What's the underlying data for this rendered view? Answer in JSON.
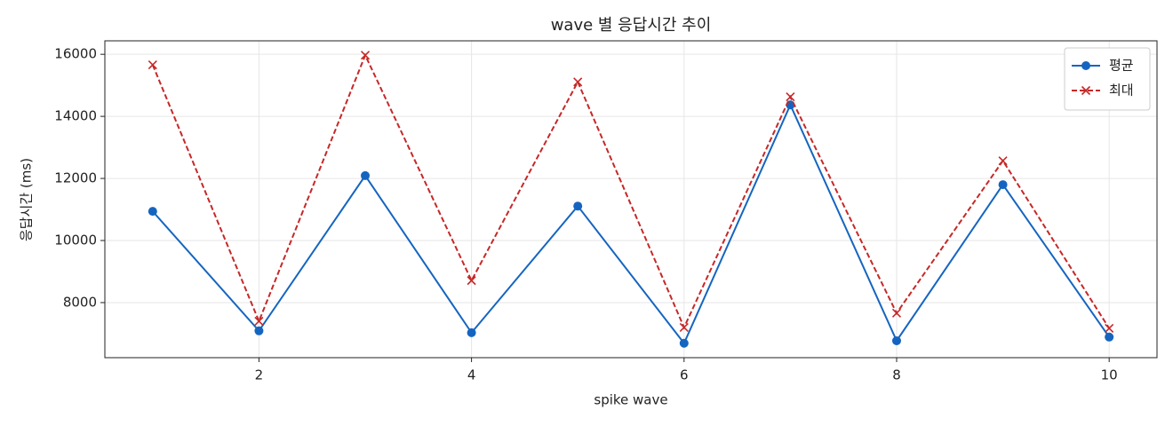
{
  "chart_data": {
    "type": "line",
    "title": "wave 별 응답시간 추이",
    "x_label": "spike wave",
    "y_label": "응답시간 (ms)",
    "x": [
      1,
      2,
      3,
      4,
      5,
      6,
      7,
      8,
      9,
      10
    ],
    "series": [
      {
        "name": "평균",
        "color": "#1565c0",
        "marker": "o",
        "dash": false,
        "values": [
          10940,
          7090,
          12090,
          7030,
          11110,
          6690,
          14370,
          6770,
          11800,
          6890
        ]
      },
      {
        "name": "최대",
        "color": "#c62828",
        "marker": "x",
        "dash": true,
        "values": [
          15660,
          7400,
          15970,
          8710,
          15110,
          7200,
          14630,
          7660,
          12570,
          7170
        ]
      }
    ],
    "xlim": [
      0.55,
      10.45
    ],
    "xticks": [
      2,
      4,
      6,
      8,
      10
    ],
    "ylim": [
      6226,
      16434
    ],
    "yticks": [
      8000,
      10000,
      12000,
      14000,
      16000
    ],
    "grid": true,
    "legend": "upper right"
  }
}
